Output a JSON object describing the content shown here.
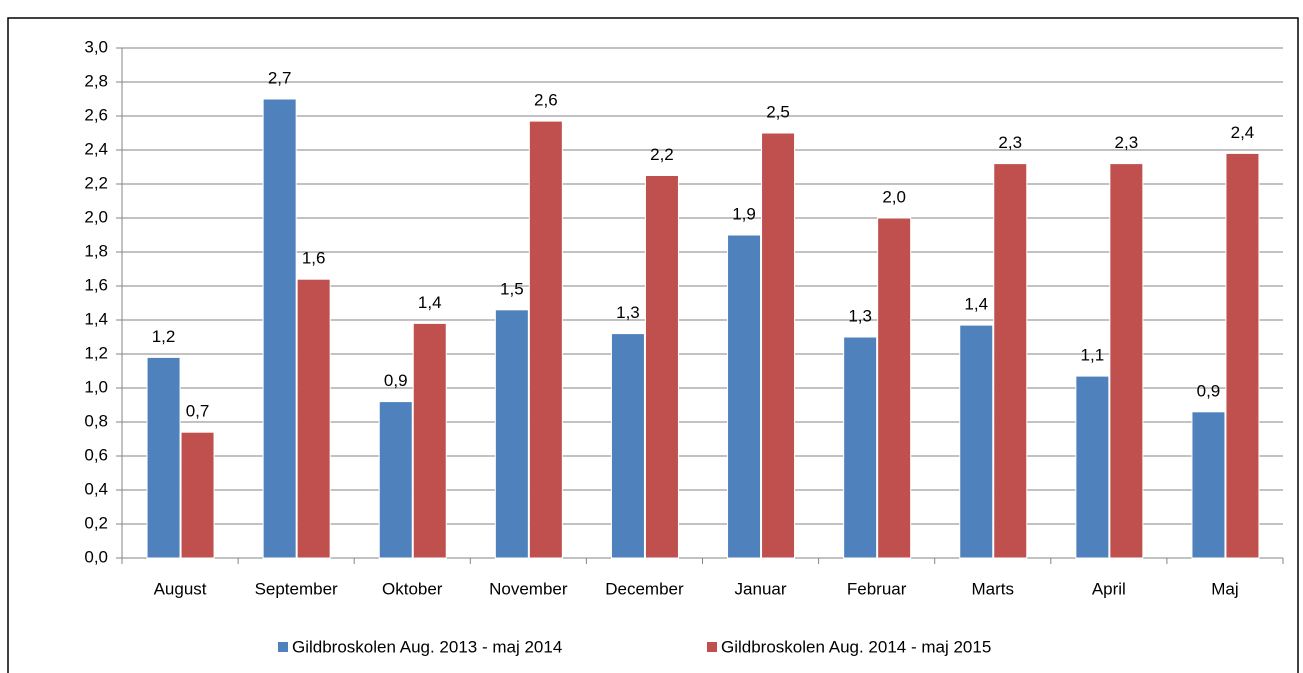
{
  "chart_data": {
    "type": "bar",
    "categories": [
      "August",
      "September",
      "Oktober",
      "November",
      "December",
      "Januar",
      "Februar",
      "Marts",
      "April",
      "Maj"
    ],
    "series": [
      {
        "name": "Gildbroskolen Aug. 2013 - maj 2014",
        "color": "#4f81bd",
        "values": [
          1.18,
          2.7,
          0.92,
          1.46,
          1.32,
          1.9,
          1.3,
          1.37,
          1.07,
          0.86
        ],
        "value_labels": [
          "1,2",
          "2,7",
          "0,9",
          "1,5",
          "1,3",
          "1,9",
          "1,3",
          "1,4",
          "1,1",
          "0,9"
        ]
      },
      {
        "name": "Gildbroskolen Aug. 2014 - maj 2015",
        "color": "#c0504d",
        "values": [
          0.74,
          1.64,
          1.38,
          2.57,
          2.25,
          2.5,
          2.0,
          2.32,
          2.32,
          2.38
        ],
        "value_labels": [
          "0,7",
          "1,6",
          "1,4",
          "2,6",
          "2,2",
          "2,5",
          "2,0",
          "2,3",
          "2,3",
          "2,4"
        ]
      }
    ],
    "ylim": [
      0,
      3
    ],
    "yticks": [
      {
        "value": 0,
        "label": "0,0"
      },
      {
        "value": 0.2,
        "label": "0,2"
      },
      {
        "value": 0.4,
        "label": "0,4"
      },
      {
        "value": 0.6,
        "label": "0,6"
      },
      {
        "value": 0.8,
        "label": "0,8"
      },
      {
        "value": 1,
        "label": "1,0"
      },
      {
        "value": 1.2,
        "label": "1,2"
      },
      {
        "value": 1.4,
        "label": "1,4"
      },
      {
        "value": 1.6,
        "label": "1,6"
      },
      {
        "value": 1.8,
        "label": "1,8"
      },
      {
        "value": 2,
        "label": "2,0"
      },
      {
        "value": 2.2,
        "label": "2,2"
      },
      {
        "value": 2.4,
        "label": "2,4"
      },
      {
        "value": 2.6,
        "label": "2,6"
      },
      {
        "value": 2.8,
        "label": "2,8"
      },
      {
        "value": 3,
        "label": "3,0"
      }
    ],
    "grid": true,
    "legend": "bottom"
  }
}
